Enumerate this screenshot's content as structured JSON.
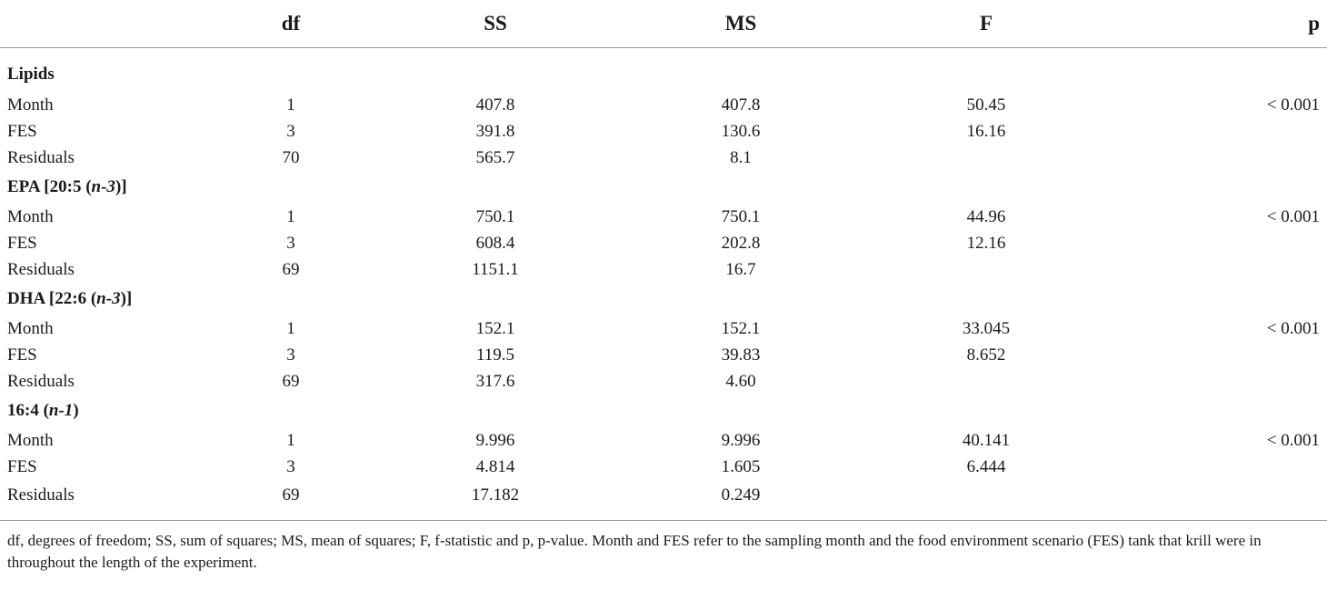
{
  "headers": [
    "",
    "df",
    "SS",
    "MS",
    "F",
    "p"
  ],
  "groups": [
    {
      "title_parts": [
        {
          "t": "Lipids",
          "i": false
        }
      ],
      "rows": [
        {
          "label": "Month",
          "df": "1",
          "ss": "407.8",
          "ms": "407.8",
          "f": "50.45",
          "p": "< 0.001"
        },
        {
          "label": "FES",
          "df": "3",
          "ss": "391.8",
          "ms": "130.6",
          "f": "16.16",
          "p": ""
        },
        {
          "label": "Residuals",
          "df": "70",
          "ss": "565.7",
          "ms": "8.1",
          "f": "",
          "p": ""
        }
      ]
    },
    {
      "title_parts": [
        {
          "t": "EPA [20:5 (",
          "i": false
        },
        {
          "t": "n-3",
          "i": true
        },
        {
          "t": ")]",
          "i": false
        }
      ],
      "rows": [
        {
          "label": "Month",
          "df": "1",
          "ss": "750.1",
          "ms": "750.1",
          "f": "44.96",
          "p": "< 0.001"
        },
        {
          "label": "FES",
          "df": "3",
          "ss": "608.4",
          "ms": "202.8",
          "f": "12.16",
          "p": ""
        },
        {
          "label": "Residuals",
          "df": "69",
          "ss": "1151.1",
          "ms": "16.7",
          "f": "",
          "p": ""
        }
      ]
    },
    {
      "title_parts": [
        {
          "t": "DHA [22:6 (",
          "i": false
        },
        {
          "t": "n-3",
          "i": true
        },
        {
          "t": ")]",
          "i": false
        }
      ],
      "rows": [
        {
          "label": "Month",
          "df": "1",
          "ss": "152.1",
          "ms": "152.1",
          "f": "33.045",
          "p": "< 0.001"
        },
        {
          "label": "FES",
          "df": "3",
          "ss": "119.5",
          "ms": "39.83",
          "f": "8.652",
          "p": ""
        },
        {
          "label": "Residuals",
          "df": "69",
          "ss": "317.6",
          "ms": "4.60",
          "f": "",
          "p": ""
        }
      ]
    },
    {
      "title_parts": [
        {
          "t": "16:4 (",
          "i": false
        },
        {
          "t": "n-1",
          "i": true
        },
        {
          "t": ")",
          "i": false
        }
      ],
      "rows": [
        {
          "label": "Month",
          "df": "1",
          "ss": "9.996",
          "ms": "9.996",
          "f": "40.141",
          "p": "< 0.001"
        },
        {
          "label": "FES",
          "df": "3",
          "ss": "4.814",
          "ms": "1.605",
          "f": "6.444",
          "p": ""
        },
        {
          "label": "Residuals",
          "df": "69",
          "ss": "17.182",
          "ms": "0.249",
          "f": "",
          "p": ""
        }
      ]
    }
  ],
  "footnote": "df, degrees of freedom; SS, sum of squares; MS, mean of squares; F, f-statistic and p, p-value. Month and FES refer to the sampling month and the food environment scenario (FES) tank that krill were in throughout the length of the experiment."
}
